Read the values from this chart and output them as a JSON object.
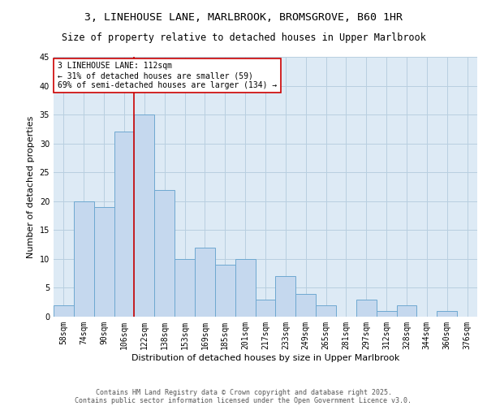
{
  "title_line1": "3, LINEHOUSE LANE, MARLBROOK, BROMSGROVE, B60 1HR",
  "title_line2": "Size of property relative to detached houses in Upper Marlbrook",
  "xlabel": "Distribution of detached houses by size in Upper Marlbrook",
  "ylabel": "Number of detached properties",
  "categories": [
    "58sqm",
    "74sqm",
    "90sqm",
    "106sqm",
    "122sqm",
    "138sqm",
    "153sqm",
    "169sqm",
    "185sqm",
    "201sqm",
    "217sqm",
    "233sqm",
    "249sqm",
    "265sqm",
    "281sqm",
    "297sqm",
    "312sqm",
    "328sqm",
    "344sqm",
    "360sqm",
    "376sqm"
  ],
  "values": [
    2,
    20,
    19,
    32,
    35,
    22,
    10,
    12,
    9,
    10,
    3,
    7,
    4,
    2,
    0,
    3,
    1,
    2,
    0,
    1,
    0
  ],
  "bar_color": "#c5d8ee",
  "bar_edge_color": "#6ea8d0",
  "property_line_x": 3.5,
  "property_line_color": "#cc0000",
  "annotation_text": "3 LINEHOUSE LANE: 112sqm\n← 31% of detached houses are smaller (59)\n69% of semi-detached houses are larger (134) →",
  "annotation_box_color": "#ffffff",
  "annotation_box_edge_color": "#cc0000",
  "ylim": [
    0,
    45
  ],
  "yticks": [
    0,
    5,
    10,
    15,
    20,
    25,
    30,
    35,
    40,
    45
  ],
  "grid_color": "#b8cfe0",
  "background_color": "#ddeaf5",
  "footer_line1": "Contains HM Land Registry data © Crown copyright and database right 2025.",
  "footer_line2": "Contains public sector information licensed under the Open Government Licence v3.0.",
  "title_fontsize": 9.5,
  "subtitle_fontsize": 8.5,
  "axis_label_fontsize": 8,
  "tick_fontsize": 7,
  "annotation_fontsize": 7,
  "footer_fontsize": 6
}
